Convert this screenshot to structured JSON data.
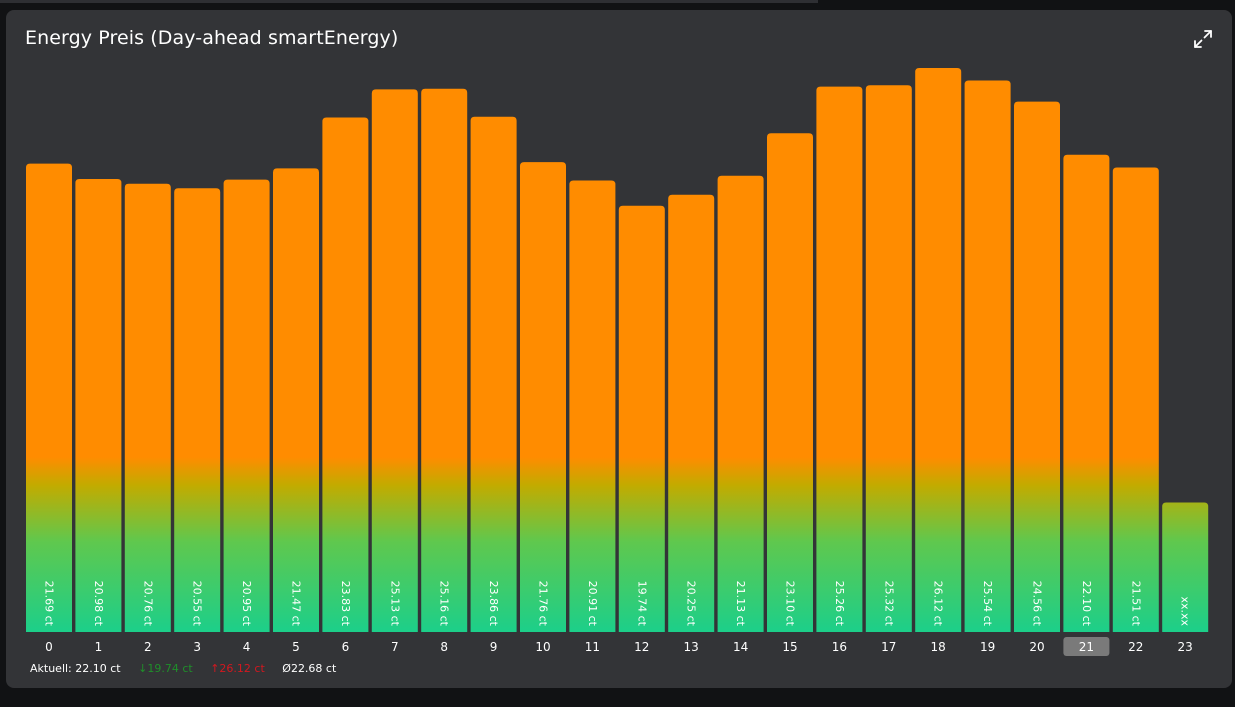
{
  "card": {
    "title": "Energy Preis (Day-ahead smartEnergy)",
    "expand_icon": "expand-arrows-icon"
  },
  "colors": {
    "card_bg": "#333437",
    "bar_top": "#ff8c00",
    "bar_bottom": "#1ccf8a",
    "bar_mid": "#c2ab00",
    "axis_highlight_bg": "#7a7a7a",
    "min_color": "#1f8f2a",
    "max_color": "#d2181f"
  },
  "chart_data": {
    "type": "bar",
    "categories": [
      "0",
      "1",
      "2",
      "3",
      "4",
      "5",
      "6",
      "7",
      "8",
      "9",
      "10",
      "11",
      "12",
      "13",
      "14",
      "15",
      "16",
      "17",
      "18",
      "19",
      "20",
      "21",
      "22",
      "23"
    ],
    "values": [
      21.69,
      20.98,
      20.76,
      20.55,
      20.95,
      21.47,
      23.83,
      25.13,
      25.16,
      23.86,
      21.76,
      20.91,
      19.74,
      20.25,
      21.13,
      23.1,
      25.26,
      25.32,
      26.12,
      25.54,
      24.56,
      22.1,
      21.51,
      null
    ],
    "labels": [
      "21.69 ct",
      "20.98 ct",
      "20.76 ct",
      "20.55 ct",
      "20.95 ct",
      "21.47 ct",
      "23.83 ct",
      "25.13 ct",
      "25.16 ct",
      "23.86 ct",
      "21.76 ct",
      "20.91 ct",
      "19.74 ct",
      "20.25 ct",
      "21.13 ct",
      "23.10 ct",
      "25.26 ct",
      "25.32 ct",
      "26.12 ct",
      "25.54 ct",
      "24.56 ct",
      "22.10 ct",
      "21.51 ct",
      "xx.xx"
    ],
    "placeholder_value": 6.0,
    "highlighted_category": "21",
    "ylim": [
      0,
      26.12
    ],
    "grid": false,
    "legend": "none",
    "title": "Energy Preis (Day-ahead smartEnergy)"
  },
  "footer": {
    "current": "Aktuell: 22.10 ct",
    "min": "↓19.74 ct",
    "max": "↑26.12 ct",
    "avg": "Ø22.68 ct"
  }
}
